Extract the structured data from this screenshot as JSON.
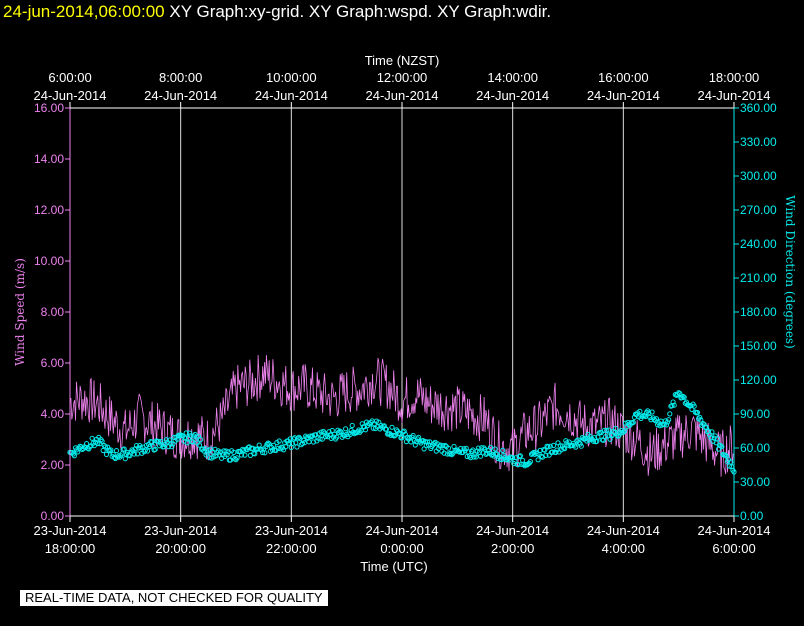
{
  "header": {
    "timestamp": "24-jun-2014,06:00:00",
    "graphs": "XY Graph:xy-grid.  XY Graph:wspd.  XY Graph:wdir."
  },
  "notice": "REAL-TIME DATA, NOT CHECKED FOR QUALITY",
  "chart_data": {
    "type": "line",
    "title": "",
    "top_axis": {
      "label": "Time (NZST)",
      "ticks": [
        {
          "time": "6:00:00",
          "date": "24-Jun-2014"
        },
        {
          "time": "8:00:00",
          "date": "24-Jun-2014"
        },
        {
          "time": "10:00:00",
          "date": "24-Jun-2014"
        },
        {
          "time": "12:00:00",
          "date": "24-Jun-2014"
        },
        {
          "time": "14:00:00",
          "date": "24-Jun-2014"
        },
        {
          "time": "16:00:00",
          "date": "24-Jun-2014"
        },
        {
          "time": "18:00:00",
          "date": "24-Jun-2014"
        }
      ]
    },
    "bottom_axis": {
      "label": "Time (UTC)",
      "ticks": [
        {
          "date": "23-Jun-2014",
          "time": "18:00:00"
        },
        {
          "date": "23-Jun-2014",
          "time": "20:00:00"
        },
        {
          "date": "23-Jun-2014",
          "time": "22:00:00"
        },
        {
          "date": "24-Jun-2014",
          "time": "0:00:00"
        },
        {
          "date": "24-Jun-2014",
          "time": "2:00:00"
        },
        {
          "date": "24-Jun-2014",
          "time": "4:00:00"
        },
        {
          "date": "24-Jun-2014",
          "time": "6:00:00"
        }
      ]
    },
    "x_tick_hours_utc": [
      0,
      2,
      4,
      6,
      8,
      10,
      12
    ],
    "xlim_hours": [
      0,
      12
    ],
    "left_axis": {
      "label": "Wind Speed (m/s)",
      "ylim": [
        0,
        16
      ],
      "ticks": [
        "0.00",
        "2.00",
        "4.00",
        "6.00",
        "8.00",
        "10.00",
        "12.00",
        "14.00",
        "16.00"
      ],
      "tick_values": [
        0,
        2,
        4,
        6,
        8,
        10,
        12,
        14,
        16
      ]
    },
    "right_axis": {
      "label": "Wind Direction (degrees)",
      "ylim": [
        0,
        360
      ],
      "ticks": [
        "0.00",
        "30.00",
        "60.00",
        "90.00",
        "120.00",
        "150.00",
        "180.00",
        "210.00",
        "240.00",
        "270.00",
        "300.00",
        "330.00",
        "360.00"
      ],
      "tick_values": [
        0,
        30,
        60,
        90,
        120,
        150,
        180,
        210,
        240,
        270,
        300,
        330,
        360
      ]
    },
    "grid": "vertical",
    "series": [
      {
        "key": "wspd",
        "type": "line",
        "axis": "left",
        "color": "#ee82ee",
        "x": [
          0,
          0.25,
          0.5,
          0.75,
          1,
          1.25,
          1.5,
          1.75,
          2,
          2.25,
          2.5,
          2.75,
          3,
          3.25,
          3.5,
          3.75,
          4,
          4.25,
          4.5,
          4.75,
          5,
          5.25,
          5.5,
          5.75,
          6,
          6.25,
          6.5,
          6.75,
          7,
          7.25,
          7.5,
          7.75,
          8,
          8.25,
          8.5,
          8.75,
          9,
          9.25,
          9.5,
          9.75,
          10,
          10.25,
          10.5,
          10.75,
          11,
          11.25,
          11.5,
          11.75,
          12
        ],
        "y": [
          4.5,
          4.6,
          4.4,
          3.8,
          3.3,
          3.9,
          3.6,
          3.3,
          3.1,
          3.2,
          3.0,
          3.8,
          5.0,
          5.2,
          5.6,
          5.3,
          5.0,
          5.1,
          4.8,
          4.6,
          4.9,
          5.0,
          5.4,
          5.1,
          4.5,
          4.8,
          4.4,
          4.3,
          4.2,
          4.0,
          3.8,
          2.8,
          2.6,
          3.3,
          3.6,
          4.3,
          4.1,
          3.6,
          3.5,
          3.7,
          3.3,
          3.0,
          2.4,
          2.8,
          3.1,
          3.4,
          2.9,
          2.4,
          2.8
        ]
      },
      {
        "key": "wdir",
        "type": "scatter",
        "axis": "right",
        "color": "#00eeee",
        "x": [
          0,
          0.25,
          0.5,
          0.75,
          1,
          1.25,
          1.5,
          1.75,
          2,
          2.25,
          2.5,
          2.75,
          3,
          3.25,
          3.5,
          3.75,
          4,
          4.25,
          4.5,
          4.75,
          5,
          5.25,
          5.5,
          5.75,
          6,
          6.25,
          6.5,
          6.75,
          7,
          7.25,
          7.5,
          7.75,
          8,
          8.25,
          8.5,
          8.75,
          9,
          9.25,
          9.5,
          9.75,
          10,
          10.25,
          10.5,
          10.75,
          11,
          11.25,
          11.5,
          11.75,
          12
        ],
        "y": [
          55,
          62,
          66,
          54,
          55,
          59,
          62,
          64,
          68,
          70,
          56,
          53,
          54,
          57,
          60,
          62,
          64,
          67,
          70,
          72,
          74,
          78,
          80,
          76,
          72,
          66,
          62,
          60,
          56,
          55,
          58,
          55,
          50,
          48,
          55,
          60,
          63,
          66,
          70,
          72,
          76,
          90,
          88,
          80,
          110,
          95,
          78,
          60,
          42
        ]
      }
    ]
  }
}
